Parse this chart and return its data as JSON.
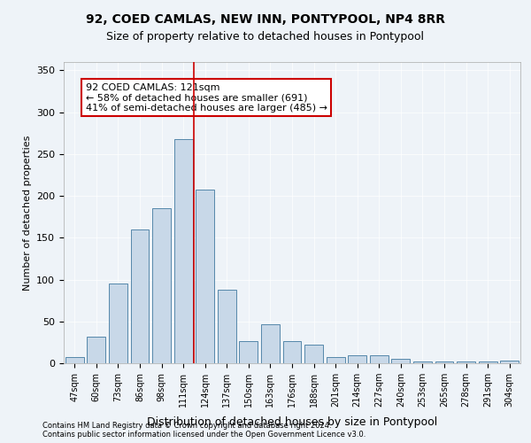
{
  "title1": "92, COED CAMLAS, NEW INN, PONTYPOOL, NP4 8RR",
  "title2": "Size of property relative to detached houses in Pontypool",
  "xlabel": "Distribution of detached houses by size in Pontypool",
  "ylabel": "Number of detached properties",
  "categories": [
    "47sqm",
    "60sqm",
    "73sqm",
    "86sqm",
    "98sqm",
    "111sqm",
    "124sqm",
    "137sqm",
    "150sqm",
    "163sqm",
    "176sqm",
    "188sqm",
    "201sqm",
    "214sqm",
    "227sqm",
    "240sqm",
    "253sqm",
    "265sqm",
    "278sqm",
    "291sqm",
    "304sqm"
  ],
  "values": [
    7,
    32,
    95,
    160,
    185,
    268,
    208,
    88,
    27,
    47,
    27,
    22,
    7,
    10,
    10,
    5,
    2,
    2,
    2,
    2,
    3
  ],
  "bar_color": "#c8d8e8",
  "bar_edge_color": "#5588aa",
  "vline_x": 5.5,
  "vline_color": "#cc0000",
  "annotation_text": "92 COED CAMLAS: 121sqm\n← 58% of detached houses are smaller (691)\n41% of semi-detached houses are larger (485) →",
  "annotation_box_color": "#ffffff",
  "annotation_box_edge_color": "#cc0000",
  "ylim": [
    0,
    360
  ],
  "yticks": [
    0,
    50,
    100,
    150,
    200,
    250,
    300,
    350
  ],
  "footer1": "Contains HM Land Registry data © Crown copyright and database right 2024.",
  "footer2": "Contains public sector information licensed under the Open Government Licence v3.0.",
  "background_color": "#eef3f8",
  "plot_bg_color": "#eef3f8"
}
